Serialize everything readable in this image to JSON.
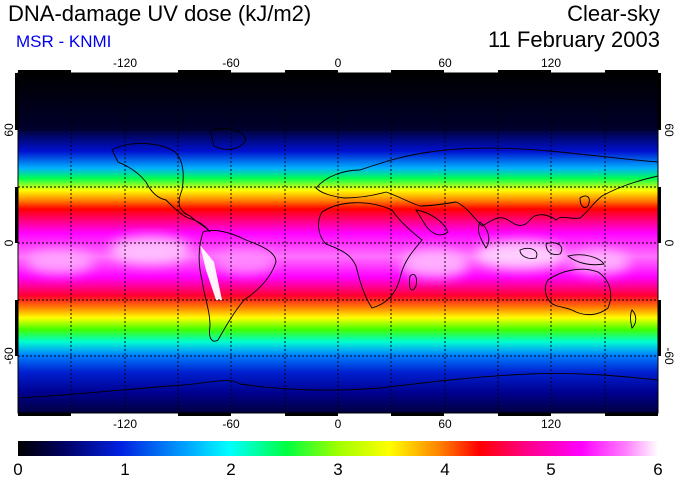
{
  "header": {
    "title": "DNA-damage UV dose (kJ/m2)",
    "source": "MSR - KNMI",
    "condition": "Clear-sky",
    "date": "11 February 2003"
  },
  "map": {
    "projection": "equirectangular",
    "lon_ticks": [
      "-120",
      "-60",
      "0",
      "60",
      "120"
    ],
    "lat_ticks": [
      "60",
      "0",
      "-60"
    ]
  },
  "colorbar": {
    "min": 0,
    "max": 6,
    "tick_labels": [
      "0",
      "1",
      "2",
      "3",
      "4",
      "5",
      "6"
    ],
    "stops": [
      "#000000",
      "#000060",
      "#0020e0",
      "#00a0ff",
      "#00ffff",
      "#00ff40",
      "#a0ff00",
      "#ffff00",
      "#ff8000",
      "#ff0000",
      "#ff0090",
      "#ff00ff",
      "#ff80ff",
      "#ffffff"
    ]
  },
  "colors": {
    "source_text": "#0000ee"
  }
}
